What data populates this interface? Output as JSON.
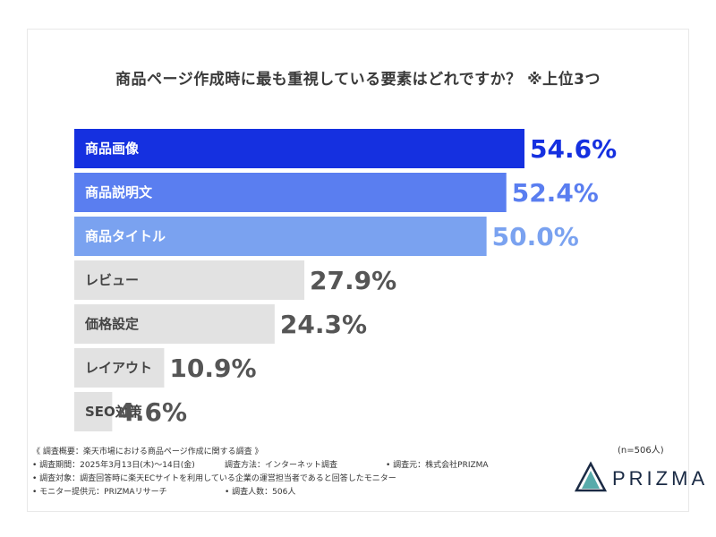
{
  "chart_data": {
    "type": "bar",
    "orientation": "horizontal",
    "title": "商品ページ作成時に最も重視している要素はどれですか？ ※上位3つ",
    "categories": [
      "商品画像",
      "商品説明文",
      "商品タイトル",
      "レビュー",
      "価格設定",
      "レイアウト",
      "SEO対策"
    ],
    "values": [
      54.6,
      52.4,
      50.0,
      27.9,
      24.3,
      10.9,
      4.6
    ],
    "value_labels": [
      "54.6%",
      "52.4%",
      "50.0%",
      "27.9%",
      "24.3%",
      "10.9%",
      "4.6%"
    ],
    "xlim": [
      0,
      54.6
    ],
    "colors": [
      "#1530e0",
      "#5a7ef0",
      "#7aa2f0",
      "#e2e2e2",
      "#e2e2e2",
      "#e2e2e2",
      "#e2e2e2"
    ],
    "value_colors": [
      "#1530e0",
      "#5a7ef0",
      "#7aa2f0",
      "#555555",
      "#555555",
      "#555555",
      "#555555"
    ],
    "label_colors": [
      "#ffffff",
      "#ffffff",
      "#ffffff",
      "#444444",
      "#444444",
      "#444444",
      "#444444"
    ]
  },
  "notes": {
    "line1": "《 調査概要：楽天市場における商品ページ作成に関する調査 》",
    "line2a": "• 調査期間：2025年3月13日(木)〜14日(金)",
    "line2b": "調査方法：インターネット調査",
    "line2c": "• 調査元：株式会社PRIZMA",
    "line3": "• 調査対象：調査回答時に楽天ECサイトを利用している企業の運営担当者であると回答したモニター",
    "line4a": "• モニター提供元：PRIZMAリサーチ",
    "line4b": "• 調査人数：506人"
  },
  "sample_size": "(n=506人)",
  "logo": {
    "text": "PRIZMA",
    "colors": [
      "#1a2a44",
      "#1f8f8f"
    ]
  }
}
